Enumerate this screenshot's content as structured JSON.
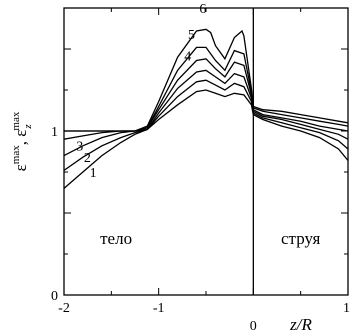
{
  "chart_data": {
    "type": "line",
    "xlabel": "z/R",
    "ylabel": "ε^max, ε_z^max",
    "ylabel_parts": {
      "eps": "ε",
      "sup": "max",
      "sep": ", ",
      "eps_z": "ε",
      "sub": "z"
    },
    "xlim": [
      -2,
      1
    ],
    "ylim": [
      0,
      1.75
    ],
    "x_ticks": [
      {
        "value": -2,
        "label": "-2"
      },
      {
        "value": -1,
        "label": "-1"
      },
      {
        "value": 0,
        "label": "0"
      },
      {
        "value": 1,
        "label": "1"
      }
    ],
    "y_ticks": [
      {
        "value": 0,
        "label": "0"
      },
      {
        "value": 1,
        "label": "1"
      }
    ],
    "divider_x": 0,
    "region_labels": [
      {
        "text": "тело",
        "x": -1.45,
        "y": 0.31
      },
      {
        "text": "струя",
        "x": 0.5,
        "y": 0.31
      }
    ],
    "series": [
      {
        "name": "1",
        "label_at": [
          -1.73,
          0.72
        ],
        "points": [
          [
            -2,
            0.65
          ],
          [
            -1.8,
            0.75
          ],
          [
            -1.6,
            0.85
          ],
          [
            -1.4,
            0.93
          ],
          [
            -1.25,
            0.98
          ],
          [
            -1.12,
            1.01
          ],
          [
            -1.0,
            1.07
          ],
          [
            -0.8,
            1.16
          ],
          [
            -0.6,
            1.24
          ],
          [
            -0.5,
            1.25
          ],
          [
            -0.4,
            1.23
          ],
          [
            -0.3,
            1.21
          ],
          [
            -0.2,
            1.23
          ],
          [
            -0.1,
            1.22
          ],
          [
            -0.02,
            1.16
          ],
          [
            0,
            1.1
          ],
          [
            0.1,
            1.07
          ],
          [
            0.3,
            1.03
          ],
          [
            0.5,
            1.0
          ],
          [
            0.7,
            0.96
          ],
          [
            0.9,
            0.89
          ],
          [
            1.0,
            0.82
          ]
        ]
      },
      {
        "name": "2",
        "label_at": [
          -1.79,
          0.81
        ],
        "points": [
          [
            -2,
            0.76
          ],
          [
            -1.8,
            0.84
          ],
          [
            -1.6,
            0.91
          ],
          [
            -1.4,
            0.96
          ],
          [
            -1.25,
            0.99
          ],
          [
            -1.12,
            1.01
          ],
          [
            -1.0,
            1.09
          ],
          [
            -0.8,
            1.21
          ],
          [
            -0.6,
            1.3
          ],
          [
            -0.5,
            1.31
          ],
          [
            -0.4,
            1.28
          ],
          [
            -0.3,
            1.25
          ],
          [
            -0.2,
            1.29
          ],
          [
            -0.1,
            1.27
          ],
          [
            -0.02,
            1.18
          ],
          [
            0,
            1.11
          ],
          [
            0.1,
            1.08
          ],
          [
            0.3,
            1.05
          ],
          [
            0.5,
            1.02
          ],
          [
            0.7,
            0.99
          ],
          [
            0.9,
            0.94
          ],
          [
            1.0,
            0.89
          ]
        ]
      },
      {
        "name": "3",
        "label_at": [
          -1.87,
          0.88
        ],
        "points": [
          [
            -2,
            0.85
          ],
          [
            -1.8,
            0.91
          ],
          [
            -1.6,
            0.96
          ],
          [
            -1.4,
            0.99
          ],
          [
            -1.25,
            1.0
          ],
          [
            -1.12,
            1.01
          ],
          [
            -1.0,
            1.11
          ],
          [
            -0.8,
            1.26
          ],
          [
            -0.6,
            1.36
          ],
          [
            -0.5,
            1.37
          ],
          [
            -0.4,
            1.33
          ],
          [
            -0.3,
            1.29
          ],
          [
            -0.2,
            1.35
          ],
          [
            -0.1,
            1.33
          ],
          [
            -0.02,
            1.2
          ],
          [
            0,
            1.12
          ],
          [
            0.1,
            1.09
          ],
          [
            0.3,
            1.07
          ],
          [
            0.5,
            1.04
          ],
          [
            0.7,
            1.01
          ],
          [
            0.9,
            0.98
          ],
          [
            1.0,
            0.95
          ]
        ]
      },
      {
        "name": "4",
        "label_at": [
          -0.73,
          1.43
        ],
        "points": [
          [
            -2,
            0.95
          ],
          [
            -1.8,
            0.97
          ],
          [
            -1.6,
            0.99
          ],
          [
            -1.4,
            1.0
          ],
          [
            -1.25,
            1.0
          ],
          [
            -1.12,
            1.02
          ],
          [
            -1.0,
            1.13
          ],
          [
            -0.8,
            1.31
          ],
          [
            -0.6,
            1.43
          ],
          [
            -0.5,
            1.44
          ],
          [
            -0.4,
            1.38
          ],
          [
            -0.3,
            1.33
          ],
          [
            -0.2,
            1.42
          ],
          [
            -0.1,
            1.4
          ],
          [
            -0.02,
            1.22
          ],
          [
            0,
            1.13
          ],
          [
            0.1,
            1.1
          ],
          [
            0.3,
            1.08
          ],
          [
            0.5,
            1.06
          ],
          [
            0.7,
            1.03
          ],
          [
            0.9,
            1.01
          ],
          [
            1.0,
            1.0
          ]
        ]
      },
      {
        "name": "5",
        "label_at": [
          -0.69,
          1.56
        ],
        "points": [
          [
            -2,
            1.0
          ],
          [
            -1.8,
            1.0
          ],
          [
            -1.6,
            1.0
          ],
          [
            -1.4,
            1.0
          ],
          [
            -1.25,
            1.0
          ],
          [
            -1.12,
            1.02
          ],
          [
            -1.0,
            1.15
          ],
          [
            -0.8,
            1.37
          ],
          [
            -0.6,
            1.51
          ],
          [
            -0.5,
            1.51
          ],
          [
            -0.4,
            1.43
          ],
          [
            -0.3,
            1.37
          ],
          [
            -0.2,
            1.49
          ],
          [
            -0.1,
            1.47
          ],
          [
            -0.02,
            1.24
          ],
          [
            0,
            1.14
          ],
          [
            0.1,
            1.12
          ],
          [
            0.3,
            1.1
          ],
          [
            0.5,
            1.08
          ],
          [
            0.7,
            1.06
          ],
          [
            0.9,
            1.04
          ],
          [
            1.0,
            1.03
          ]
        ]
      },
      {
        "name": "6",
        "label_at": [
          -0.57,
          1.72
        ],
        "points": [
          [
            -2,
            1.0
          ],
          [
            -1.8,
            1.0
          ],
          [
            -1.6,
            1.0
          ],
          [
            -1.4,
            1.0
          ],
          [
            -1.25,
            1.0
          ],
          [
            -1.12,
            1.03
          ],
          [
            -1.0,
            1.18
          ],
          [
            -0.8,
            1.45
          ],
          [
            -0.6,
            1.61
          ],
          [
            -0.5,
            1.62
          ],
          [
            -0.45,
            1.6
          ],
          [
            -0.4,
            1.52
          ],
          [
            -0.3,
            1.44
          ],
          [
            -0.2,
            1.57
          ],
          [
            -0.12,
            1.61
          ],
          [
            -0.1,
            1.58
          ],
          [
            -0.02,
            1.26
          ],
          [
            0,
            1.15
          ],
          [
            0.1,
            1.13
          ],
          [
            0.3,
            1.12
          ],
          [
            0.5,
            1.1
          ],
          [
            0.7,
            1.08
          ],
          [
            0.9,
            1.06
          ],
          [
            1.0,
            1.05
          ]
        ]
      }
    ]
  }
}
